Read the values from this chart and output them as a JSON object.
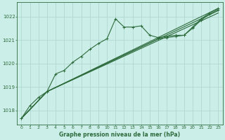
{
  "background_color": "#cceee8",
  "plot_bg_color": "#d8f0ec",
  "grid_color": "#aad4cc",
  "line_color": "#2d6b3c",
  "xlabel": "Graphe pression niveau de la mer (hPa)",
  "xlim": [
    -0.5,
    23.5
  ],
  "ylim": [
    1017.4,
    1022.6
  ],
  "yticks": [
    1018,
    1019,
    1020,
    1021,
    1022
  ],
  "xticks": [
    0,
    1,
    2,
    3,
    4,
    5,
    6,
    7,
    8,
    9,
    10,
    11,
    12,
    13,
    14,
    15,
    16,
    17,
    18,
    19,
    20,
    21,
    22,
    23
  ],
  "lines": [
    {
      "x": [
        0,
        1,
        2,
        3,
        4,
        5,
        6,
        7,
        8,
        9,
        10,
        11,
        12,
        13,
        14,
        15,
        16,
        17,
        18,
        19,
        20,
        21,
        22,
        23
      ],
      "y": [
        1017.65,
        1018.2,
        1018.55,
        1018.8,
        1019.55,
        1019.7,
        1020.05,
        1020.3,
        1020.6,
        1020.85,
        1021.05,
        1021.9,
        1021.55,
        1021.55,
        1021.6,
        1021.2,
        1021.1,
        1021.15,
        1021.2,
        1021.2,
        1021.55,
        1021.9,
        1022.15,
        1022.35
      ],
      "has_markers": true,
      "linewidth": 0.8
    },
    {
      "x": [
        0,
        3,
        23
      ],
      "y": [
        1017.65,
        1018.8,
        1022.35
      ],
      "has_markers": false,
      "linewidth": 0.8
    },
    {
      "x": [
        0,
        3,
        23
      ],
      "y": [
        1017.65,
        1018.8,
        1022.25
      ],
      "has_markers": false,
      "linewidth": 0.8
    },
    {
      "x": [
        0,
        3,
        23
      ],
      "y": [
        1017.65,
        1018.8,
        1022.15
      ],
      "has_markers": false,
      "linewidth": 0.8
    },
    {
      "x": [
        0,
        3,
        16,
        17,
        18,
        19,
        20,
        21,
        22,
        23
      ],
      "y": [
        1017.65,
        1018.8,
        1021.05,
        1021.1,
        1021.15,
        1021.2,
        1021.5,
        1021.85,
        1022.1,
        1022.3
      ],
      "has_markers": true,
      "linewidth": 0.8
    }
  ]
}
